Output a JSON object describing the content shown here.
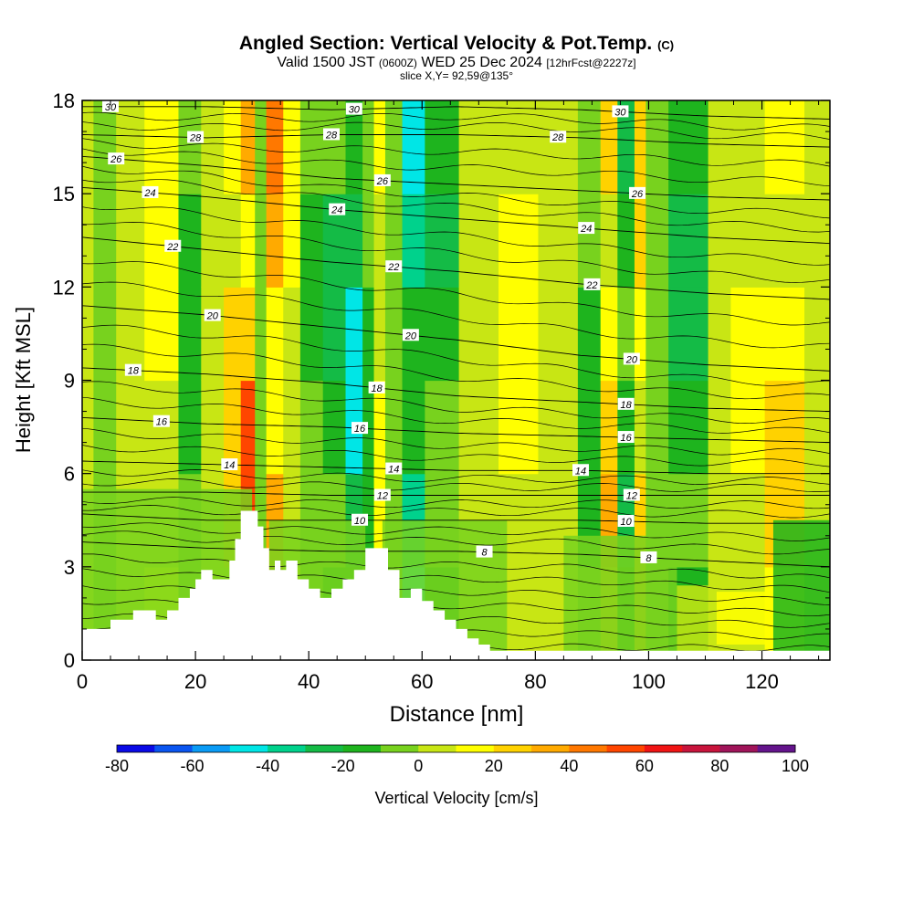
{
  "title": {
    "main": "Angled Section: Vertical Velocity & Pot.Temp.",
    "copyright": "(C)",
    "valid_prefix": "Valid 1500 JST",
    "utc": "(0600Z)",
    "valid_date": "WED 25 Dec 2024",
    "forecast": "[12hrFcst@2227z]",
    "slice": "slice X,Y= 92,59@135°"
  },
  "colors": {
    "palette": [
      "#0a0ae6",
      "#0a55f0",
      "#0a9bf5",
      "#00e6e6",
      "#00d28c",
      "#14bb46",
      "#1eb41e",
      "#78d21e",
      "#c8e614",
      "#ffff00",
      "#ffd200",
      "#ffaa00",
      "#ff7800",
      "#ff4600",
      "#f01414",
      "#c8143c",
      "#a0145a",
      "#64148c"
    ],
    "terrain": "#ffffff"
  },
  "chart_data": {
    "type": "heatmap",
    "xlabel": "Distance [nm]",
    "ylabel": "Height [Kft MSL]",
    "xlim": [
      0,
      132
    ],
    "ylim": [
      0,
      18
    ],
    "x_ticks": [
      0,
      20,
      40,
      60,
      80,
      100,
      120
    ],
    "y_ticks": [
      0,
      3,
      6,
      9,
      12,
      15,
      18
    ],
    "colorbar": {
      "label": "Vertical Velocity [cm/s]",
      "min": -80,
      "max": 100,
      "step": 10,
      "ticks": [
        -80,
        -60,
        -40,
        -20,
        0,
        20,
        40,
        60,
        80,
        100
      ]
    },
    "velocity_columns": [
      {
        "x": 2,
        "width": 4,
        "value": -8
      },
      {
        "x": 6,
        "width": 5,
        "value": 6
      },
      {
        "x": 11,
        "width": 6,
        "value": 16
      },
      {
        "x": 17,
        "width": 4,
        "value": -16
      },
      {
        "x": 21,
        "width": 4,
        "value": 2
      },
      {
        "x": 25,
        "width": 3,
        "value": 24
      },
      {
        "x": 28,
        "width": 2.5,
        "value": 48
      },
      {
        "x": 30.5,
        "width": 2,
        "value": -6
      },
      {
        "x": 32.5,
        "width": 3,
        "value": 34
      },
      {
        "x": 35.5,
        "width": 3,
        "value": 12
      },
      {
        "x": 38.5,
        "width": 4,
        "value": -12
      },
      {
        "x": 42.5,
        "width": 4,
        "value": -22
      },
      {
        "x": 46.5,
        "width": 3,
        "value": -38
      },
      {
        "x": 49.5,
        "width": 2,
        "value": -14
      },
      {
        "x": 51.5,
        "width": 2,
        "value": 14
      },
      {
        "x": 53.5,
        "width": 3,
        "value": -8
      },
      {
        "x": 56.5,
        "width": 4,
        "value": -36
      },
      {
        "x": 60.5,
        "width": 6,
        "value": -18
      },
      {
        "x": 66.5,
        "width": 7,
        "value": 2
      },
      {
        "x": 73.5,
        "width": 7,
        "value": 14
      },
      {
        "x": 80.5,
        "width": 7,
        "value": 6
      },
      {
        "x": 87.5,
        "width": 4,
        "value": -16
      },
      {
        "x": 91.5,
        "width": 3,
        "value": 26
      },
      {
        "x": 94.5,
        "width": 3,
        "value": -18
      },
      {
        "x": 97.5,
        "width": 2,
        "value": 24
      },
      {
        "x": 99.5,
        "width": 4,
        "value": -4
      },
      {
        "x": 103.5,
        "width": 7,
        "value": -20
      },
      {
        "x": 110.5,
        "width": 4,
        "value": 4
      },
      {
        "x": 114.5,
        "width": 6,
        "value": 12
      },
      {
        "x": 120.5,
        "width": 7,
        "value": 24
      },
      {
        "x": 127.5,
        "width": 4.5,
        "value": 8
      }
    ],
    "low_level_zones": [
      {
        "x0": 0,
        "x1": 30,
        "y0": 0,
        "y1": 5.5,
        "value": -6
      },
      {
        "x0": 33,
        "x1": 50,
        "y0": 0,
        "y1": 4.5,
        "value": -4
      },
      {
        "x0": 53,
        "x1": 75,
        "y0": 0,
        "y1": 4.5,
        "value": -6
      },
      {
        "x0": 85,
        "x1": 105,
        "y0": 0,
        "y1": 4,
        "value": -4
      },
      {
        "x0": 105,
        "x1": 112,
        "y0": 0,
        "y1": 2.4,
        "value": 6
      },
      {
        "x0": 112,
        "x1": 122,
        "y0": 0.5,
        "y1": 2.2,
        "value": 18
      },
      {
        "x0": 122,
        "x1": 132,
        "y0": 0,
        "y1": 4.5,
        "value": -12
      }
    ],
    "terrain_profile": {
      "x": [
        0,
        5,
        9,
        13,
        15,
        17,
        19,
        20,
        21,
        23,
        26,
        27,
        28,
        29,
        30,
        31,
        32,
        33,
        34,
        35,
        36,
        38,
        40,
        42,
        44,
        46,
        48,
        50,
        52,
        54,
        56,
        58,
        60,
        62,
        64,
        66,
        68,
        70,
        72,
        132
      ],
      "y": [
        1.0,
        1.3,
        1.6,
        1.3,
        1.6,
        2.0,
        2.3,
        2.6,
        2.9,
        2.6,
        3.2,
        3.9,
        4.8,
        4.8,
        4.8,
        4.3,
        3.6,
        2.9,
        3.2,
        2.9,
        3.2,
        2.6,
        2.3,
        2.0,
        2.3,
        2.6,
        2.9,
        3.6,
        3.6,
        2.9,
        2.0,
        2.3,
        1.9,
        1.6,
        1.3,
        1.0,
        0.7,
        0.5,
        0.3,
        0.3
      ]
    },
    "isentropes": [
      {
        "theta": 30,
        "label_xs": [
          5,
          48,
          95
        ],
        "y": [
          17.8,
          17.8,
          17.7,
          17.8,
          17.7,
          17.5,
          17.4
        ]
      },
      {
        "theta": 28,
        "label_xs": [
          20,
          44,
          84
        ],
        "y": [
          16.9,
          16.8,
          16.9,
          16.9,
          16.8,
          16.6,
          16.5
        ]
      },
      {
        "theta": 26,
        "label_xs": [
          6,
          53,
          98
        ],
        "y": [
          16.2,
          15.9,
          15.5,
          15.3,
          15.1,
          14.9,
          14.8
        ]
      },
      {
        "theta": 24,
        "label_xs": [
          12,
          45,
          89
        ],
        "y": [
          15.2,
          14.9,
          14.5,
          14.2,
          13.9,
          13.6,
          13.4
        ]
      },
      {
        "theta": 22,
        "label_xs": [
          16,
          55,
          90
        ],
        "y": [
          13.6,
          13.2,
          12.8,
          12.5,
          12.1,
          11.8,
          11.6
        ]
      },
      {
        "theta": 20,
        "label_xs": [
          23,
          58,
          97
        ],
        "y": [
          11.4,
          11.1,
          10.7,
          10.3,
          9.8,
          9.5,
          9.3
        ]
      },
      {
        "theta": 18,
        "label_xs": [
          9,
          52,
          96
        ],
        "y": [
          9.4,
          9.2,
          8.9,
          8.5,
          8.3,
          8.1,
          8.0
        ]
      },
      {
        "theta": 16,
        "label_xs": [
          14,
          49,
          96
        ],
        "y": [
          7.8,
          7.6,
          7.5,
          7.3,
          7.2,
          7.1,
          7.0
        ]
      },
      {
        "theta": 14,
        "label_xs": [
          26,
          55,
          88
        ],
        "y": [
          6.4,
          6.3,
          6.2,
          6.1,
          6.1,
          6.0,
          6.0
        ]
      },
      {
        "theta": 12,
        "label_xs": [
          53,
          97
        ],
        "y": [
          5.4,
          5.4,
          5.3,
          5.3,
          5.3,
          5.3,
          5.3
        ]
      },
      {
        "theta": 10,
        "label_xs": [
          49,
          96
        ],
        "y": [
          4.7,
          4.5,
          4.5,
          4.5,
          4.5,
          4.4,
          4.4
        ]
      },
      {
        "theta": 8,
        "label_xs": [
          71,
          100
        ],
        "y": [
          3.8,
          3.6,
          3.5,
          3.5,
          3.4,
          3.2,
          3.0
        ]
      }
    ]
  }
}
